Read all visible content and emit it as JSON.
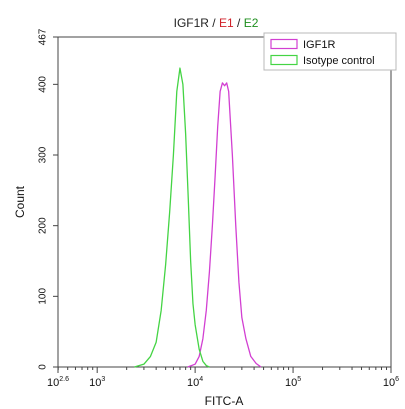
{
  "chart_data": {
    "type": "line",
    "title_parts": [
      {
        "text": "IGF1R",
        "color": "#222222"
      },
      {
        "text": " / ",
        "color": "#222222"
      },
      {
        "text": "E1",
        "color": "#d0212a"
      },
      {
        "text": " / ",
        "color": "#222222"
      },
      {
        "text": "E2",
        "color": "#1f8f1f"
      }
    ],
    "xlabel": "FITC-A",
    "ylabel": "Count",
    "x_scale": "log",
    "xlim": [
      398,
      1000000
    ],
    "ylim": [
      0,
      467
    ],
    "x_ticks": [
      {
        "value": 398,
        "base": "10",
        "exp": "2.6"
      },
      {
        "value": 1000,
        "base": "10",
        "exp": "3"
      },
      {
        "value": 10000,
        "base": "10",
        "exp": "4"
      },
      {
        "value": 100000,
        "base": "10",
        "exp": "5"
      },
      {
        "value": 1000000,
        "base": "10",
        "exp": "6"
      }
    ],
    "y_ticks": [
      0,
      100,
      200,
      300,
      400,
      467
    ],
    "grid": false,
    "legend_position": "top-right",
    "series": [
      {
        "name": "IGF1R",
        "color": "#d23fd2",
        "points": [
          [
            8400,
            0
          ],
          [
            10000,
            4
          ],
          [
            11000,
            15
          ],
          [
            12000,
            40
          ],
          [
            13000,
            80
          ],
          [
            14000,
            135
          ],
          [
            15000,
            200
          ],
          [
            16000,
            270
          ],
          [
            17000,
            340
          ],
          [
            18000,
            390
          ],
          [
            19000,
            402
          ],
          [
            20000,
            398
          ],
          [
            21000,
            402
          ],
          [
            22000,
            390
          ],
          [
            24000,
            300
          ],
          [
            26000,
            200
          ],
          [
            28000,
            120
          ],
          [
            30000,
            70
          ],
          [
            33000,
            40
          ],
          [
            37000,
            15
          ],
          [
            42000,
            5
          ],
          [
            47000,
            0
          ]
        ]
      },
      {
        "name": "Isotype control",
        "color": "#44d444",
        "points": [
          [
            2400,
            0
          ],
          [
            3000,
            4
          ],
          [
            3500,
            15
          ],
          [
            4000,
            35
          ],
          [
            4500,
            80
          ],
          [
            5000,
            145
          ],
          [
            5500,
            220
          ],
          [
            6000,
            300
          ],
          [
            6500,
            390
          ],
          [
            7000,
            423
          ],
          [
            7500,
            400
          ],
          [
            8000,
            330
          ],
          [
            8500,
            240
          ],
          [
            9000,
            150
          ],
          [
            9500,
            90
          ],
          [
            10000,
            60
          ],
          [
            11000,
            25
          ],
          [
            12000,
            8
          ],
          [
            13000,
            2
          ],
          [
            14000,
            0
          ]
        ]
      }
    ]
  }
}
